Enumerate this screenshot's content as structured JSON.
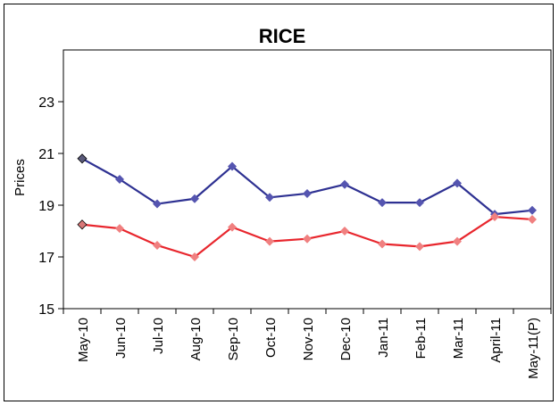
{
  "chart_data": {
    "type": "line",
    "title": "RICE",
    "xlabel": "",
    "ylabel": "Prices",
    "ylim": [
      15,
      25
    ],
    "yticks": [
      15,
      17,
      19,
      21,
      23
    ],
    "grid": false,
    "legend": "none",
    "categories": [
      "May-10",
      "Jun-10",
      "Jul-10",
      "Aug-10",
      "Sep-10",
      "Oct-10",
      "Nov-10",
      "Dec-10",
      "Jan-11",
      "Feb-11",
      "Mar-11",
      "April-11",
      "May-11(P)"
    ],
    "series": [
      {
        "color": "#2e3192",
        "marker_color": "#5555b0",
        "first_marker_color": "#5a5a7a",
        "values": [
          20.8,
          20.0,
          19.05,
          19.25,
          20.5,
          19.3,
          19.45,
          19.8,
          19.1,
          19.1,
          19.85,
          18.65,
          18.8
        ]
      },
      {
        "color": "#e8262d",
        "marker_color": "#f08080",
        "first_marker_color": "#d87878",
        "values": [
          18.25,
          18.1,
          17.45,
          17.0,
          18.15,
          17.6,
          17.7,
          18.0,
          17.5,
          17.4,
          17.6,
          18.55,
          18.45
        ]
      }
    ]
  }
}
